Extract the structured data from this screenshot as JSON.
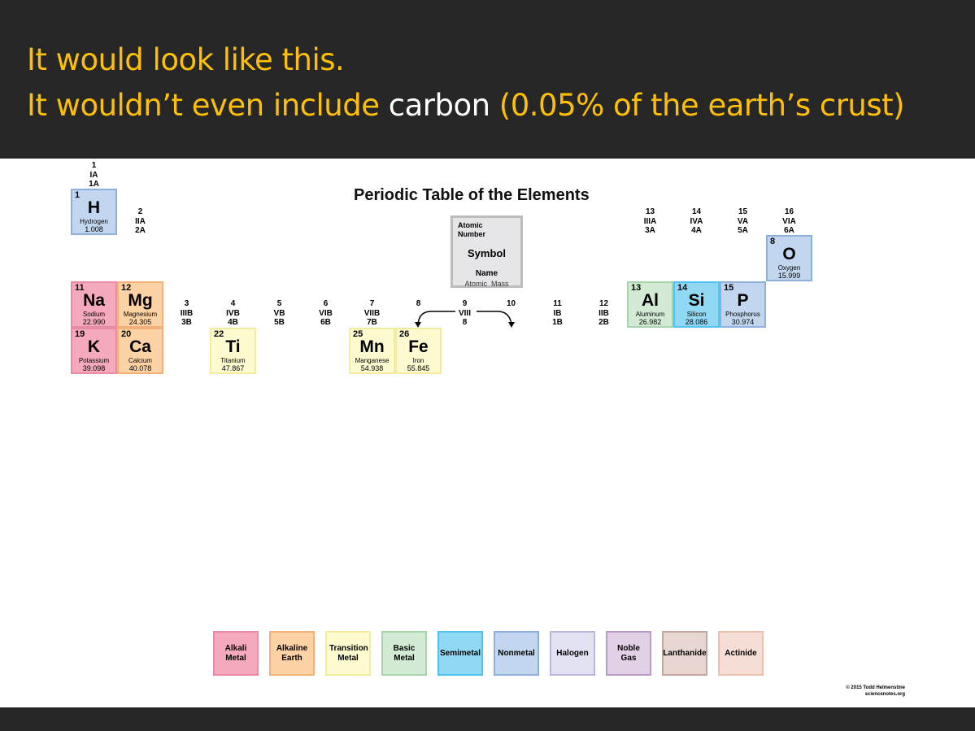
{
  "slide": {
    "line1": "It would look like this.",
    "line2_prefix": "It wouldn’t even include ",
    "line2_highlight": "carbon",
    "line2_suffix": " (0.05% of the earth’s crust)",
    "text_color": "#ffc000",
    "highlight_color": "#ffffff",
    "background": "#262626"
  },
  "table": {
    "title": "Periodic Table of the Elements",
    "key": {
      "atomic_number": "Atomic Number",
      "symbol": "Symbol",
      "name": "Name",
      "mass": "Atomic  Mass"
    },
    "group_labels": [
      {
        "group": 1,
        "lines": [
          "1",
          "IA",
          "1A"
        ]
      },
      {
        "group": 2,
        "lines": [
          "2",
          "IIA",
          "2A"
        ]
      },
      {
        "group": 3,
        "lines": [
          "3",
          "IIIB",
          "3B"
        ]
      },
      {
        "group": 4,
        "lines": [
          "4",
          "IVB",
          "4B"
        ]
      },
      {
        "group": 5,
        "lines": [
          "5",
          "VB",
          "5B"
        ]
      },
      {
        "group": 6,
        "lines": [
          "6",
          "VIB",
          "6B"
        ]
      },
      {
        "group": 7,
        "lines": [
          "7",
          "VIIB",
          "7B"
        ]
      },
      {
        "group": 8,
        "lines": [
          "8",
          "",
          ""
        ]
      },
      {
        "group": 9,
        "lines": [
          "9",
          "VIII",
          "8"
        ]
      },
      {
        "group": 10,
        "lines": [
          "10",
          "",
          ""
        ]
      },
      {
        "group": 11,
        "lines": [
          "11",
          "IB",
          "1B"
        ]
      },
      {
        "group": 12,
        "lines": [
          "12",
          "IIB",
          "2B"
        ]
      },
      {
        "group": 13,
        "lines": [
          "13",
          "IIIA",
          "3A"
        ]
      },
      {
        "group": 14,
        "lines": [
          "14",
          "IVA",
          "4A"
        ]
      },
      {
        "group": 15,
        "lines": [
          "15",
          "VA",
          "5A"
        ]
      },
      {
        "group": 16,
        "lines": [
          "16",
          "VIA",
          "6A"
        ]
      }
    ],
    "elements": [
      {
        "number": "1",
        "symbol": "H",
        "name": "Hydrogen",
        "mass": "1.008",
        "group": 1,
        "period": 1,
        "category": "Nonmetal"
      },
      {
        "number": "8",
        "symbol": "O",
        "name": "Oxygen",
        "mass": "15.999",
        "group": 16,
        "period": 2,
        "category": "Nonmetal"
      },
      {
        "number": "11",
        "symbol": "Na",
        "name": "Sodium",
        "mass": "22.990",
        "group": 1,
        "period": 3,
        "category": "Alkali Metal"
      },
      {
        "number": "12",
        "symbol": "Mg",
        "name": "Magnesium",
        "mass": "24.305",
        "group": 2,
        "period": 3,
        "category": "Alkaline Earth"
      },
      {
        "number": "13",
        "symbol": "Al",
        "name": "Aluminum",
        "mass": "26.982",
        "group": 13,
        "period": 3,
        "category": "Basic Metal"
      },
      {
        "number": "14",
        "symbol": "Si",
        "name": "Silicon",
        "mass": "28.086",
        "group": 14,
        "period": 3,
        "category": "Semimetal"
      },
      {
        "number": "15",
        "symbol": "P",
        "name": "Phosphorus",
        "mass": "30.974",
        "group": 15,
        "period": 3,
        "category": "Nonmetal"
      },
      {
        "number": "19",
        "symbol": "K",
        "name": "Potassium",
        "mass": "39.098",
        "group": 1,
        "period": 4,
        "category": "Alkali Metal"
      },
      {
        "number": "20",
        "symbol": "Ca",
        "name": "Calcium",
        "mass": "40.078",
        "group": 2,
        "period": 4,
        "category": "Alkaline Earth"
      },
      {
        "number": "22",
        "symbol": "Ti",
        "name": "Titanium",
        "mass": "47.867",
        "group": 4,
        "period": 4,
        "category": "Transition Metal"
      },
      {
        "number": "25",
        "symbol": "Mn",
        "name": "Manganese",
        "mass": "54.938",
        "group": 7,
        "period": 4,
        "category": "Transition Metal"
      },
      {
        "number": "26",
        "symbol": "Fe",
        "name": "Iron",
        "mass": "55.845",
        "group": 8,
        "period": 4,
        "category": "Transition Metal"
      }
    ],
    "legend": [
      {
        "label": "Alkali Metal",
        "key": "Alkali Metal",
        "fill": "#f5a9bd",
        "border": "#e98ba4"
      },
      {
        "label": "Alkaline Earth",
        "key": "Alkaline Earth",
        "fill": "#fdd3a6",
        "border": "#f3b078"
      },
      {
        "label": "Transition Metal",
        "key": "Transition Metal",
        "fill": "#fefbd1",
        "border": "#f3eca0"
      },
      {
        "label": "Basic Metal",
        "key": "Basic Metal",
        "fill": "#d3ebd5",
        "border": "#a6d5aa"
      },
      {
        "label": "Semimetal",
        "key": "Semimetal",
        "fill": "#8fd9f4",
        "border": "#52c3ec"
      },
      {
        "label": "Nonmetal",
        "key": "Nonmetal",
        "fill": "#c2d7ef",
        "border": "#8eaedc"
      },
      {
        "label": "Halogen",
        "key": "Halogen",
        "fill": "#e3e2f3",
        "border": "#b9b6dc"
      },
      {
        "label": "Noble Gas",
        "key": "Noble Gas",
        "fill": "#e1d0e6",
        "border": "#b99bc4"
      },
      {
        "label": "Lanthanide",
        "key": "Lanthanide",
        "fill": "#e8d7d1",
        "border": "#c2a79d"
      },
      {
        "label": "Actinide",
        "key": "Actinide",
        "fill": "#f6ddd5",
        "border": "#ecbfae"
      }
    ],
    "copyright_line1": "© 2015 Todd Helmenstine",
    "copyright_line2": "sciencenotes.org"
  }
}
